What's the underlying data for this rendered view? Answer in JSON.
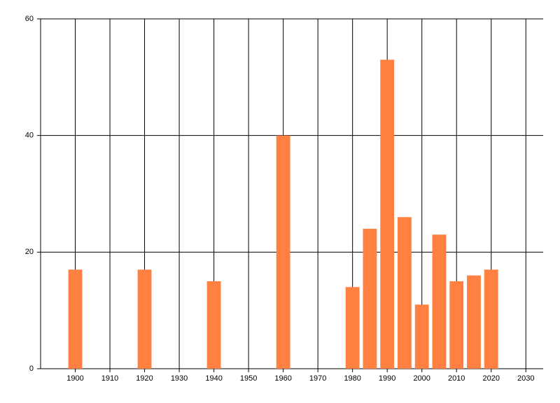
{
  "chart_data": {
    "type": "bar",
    "x": [
      1900,
      1920,
      1940,
      1960,
      1980,
      1985,
      1990,
      1995,
      2000,
      2005,
      2010,
      2015,
      2020
    ],
    "values": [
      17,
      17,
      15,
      40,
      14,
      24,
      53,
      26,
      11,
      23,
      15,
      16,
      17
    ],
    "color": "#ff8040",
    "xlim": [
      1890,
      2035
    ],
    "xticks": [
      1900,
      1910,
      1920,
      1930,
      1940,
      1950,
      1960,
      1970,
      1980,
      1990,
      2000,
      2010,
      2020,
      2030
    ],
    "ylim": [
      0,
      60
    ],
    "yticks": [
      0,
      20,
      40,
      60
    ],
    "grid": true
  }
}
